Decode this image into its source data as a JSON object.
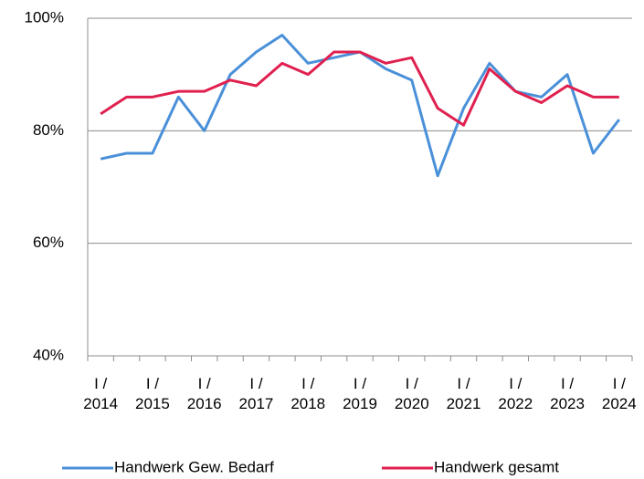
{
  "chart_data": {
    "type": "line",
    "categories": [
      "I / 2014",
      null,
      "I / 2015",
      null,
      "I / 2016",
      null,
      "I / 2017",
      null,
      "I / 2018",
      null,
      "I / 2019",
      null,
      "I / 2020",
      null,
      "I / 2021",
      null,
      "I / 2022",
      null,
      "I / 2023",
      null,
      "I / 2024"
    ],
    "series": [
      {
        "name": "Handwerk Gew. Bedarf",
        "color": "#4a90d9",
        "values": [
          75,
          76,
          76,
          86,
          80,
          90,
          94,
          97,
          92,
          93,
          94,
          91,
          89,
          72,
          84,
          92,
          87,
          86,
          90,
          76,
          82
        ]
      },
      {
        "name": "Handwerk gesamt",
        "color": "#e0204f",
        "values": [
          83,
          86,
          86,
          87,
          87,
          89,
          88,
          92,
          90,
          94,
          94,
          92,
          93,
          84,
          81,
          91,
          87,
          85,
          88,
          86,
          86
        ]
      }
    ],
    "ylim": [
      40,
      100
    ],
    "yticks": [
      {
        "value": 40,
        "label": "40%"
      },
      {
        "value": 60,
        "label": "60%"
      },
      {
        "value": 80,
        "label": "80%"
      },
      {
        "value": 100,
        "label": "100%"
      }
    ],
    "grid": true,
    "legend": "bottom"
  }
}
